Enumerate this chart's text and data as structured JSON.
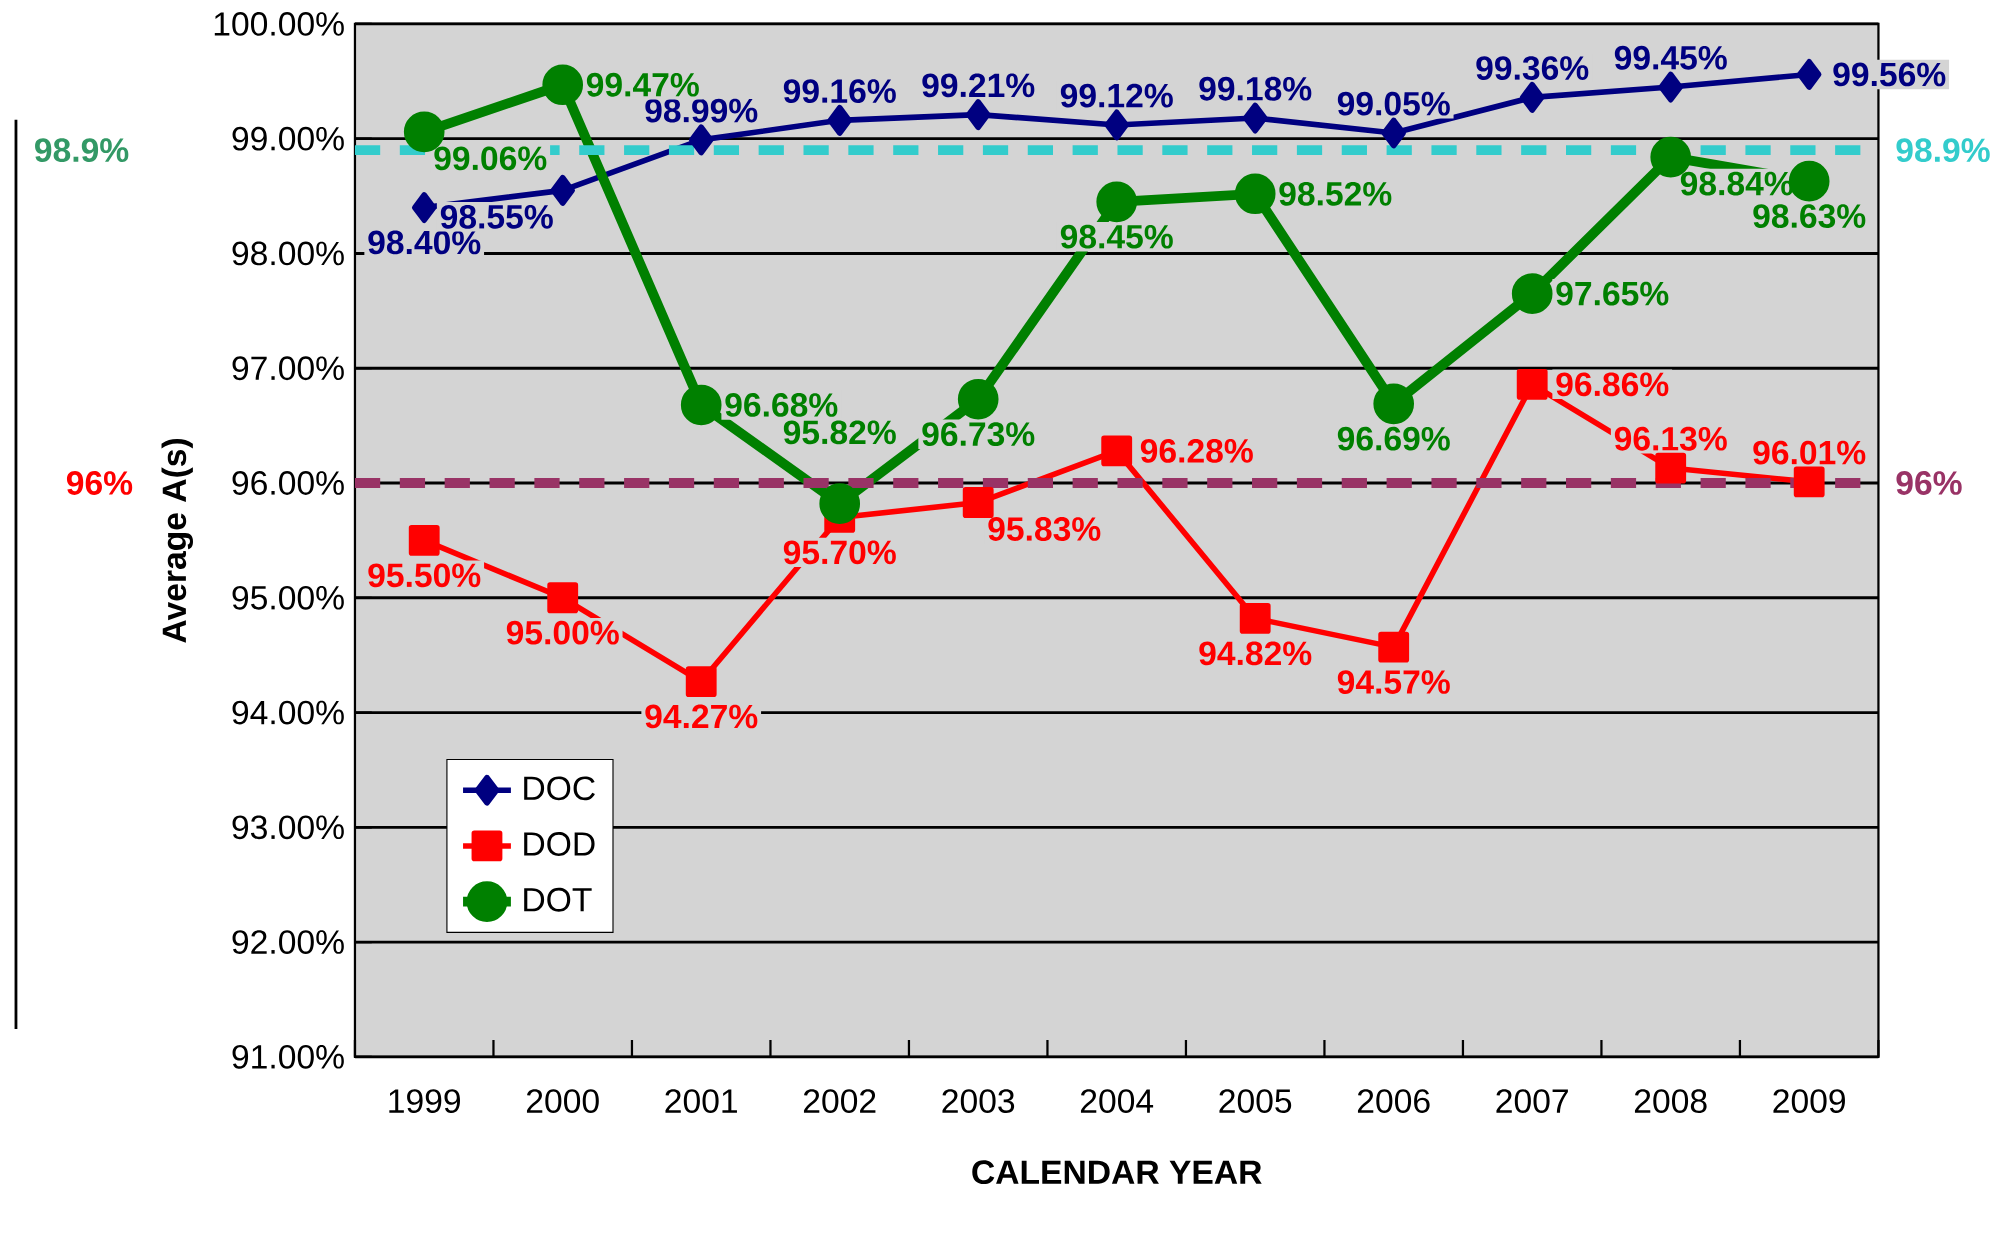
{
  "chart_data": {
    "type": "line",
    "xlabel": "CALENDAR YEAR",
    "ylabel": "Average A(s)",
    "categories": [
      "1999",
      "2000",
      "2001",
      "2002",
      "2003",
      "2004",
      "2005",
      "2006",
      "2007",
      "2008",
      "2009"
    ],
    "series": [
      {
        "name": "DOC",
        "color": "#000080",
        "marker": "diamond",
        "values": [
          98.4,
          98.55,
          98.99,
          99.16,
          99.21,
          99.12,
          99.18,
          99.05,
          99.36,
          99.45,
          99.56
        ],
        "value_labels": [
          "98.40%",
          "98.55%",
          "98.99%",
          "99.16%",
          "99.21%",
          "99.12%",
          "99.18%",
          "99.05%",
          "99.36%",
          "99.45%",
          "99.56%"
        ]
      },
      {
        "name": "DOD",
        "color": "#ff0000",
        "marker": "square",
        "values": [
          95.5,
          95.0,
          94.27,
          95.7,
          95.83,
          96.28,
          94.82,
          94.57,
          96.86,
          96.13,
          96.01
        ],
        "value_labels": [
          "95.50%",
          "95.00%",
          "94.27%",
          "95.70%",
          "95.83%",
          "96.28%",
          "94.82%",
          "94.57%",
          "96.86%",
          "96.13%",
          "96.01%"
        ]
      },
      {
        "name": "DOT",
        "color": "#008000",
        "marker": "circle",
        "values": [
          99.06,
          99.47,
          96.68,
          95.82,
          96.73,
          98.45,
          98.52,
          96.69,
          97.65,
          98.84,
          98.63
        ],
        "value_labels": [
          "99.06%",
          "99.47%",
          "96.68%",
          "95.82%",
          "96.73%",
          "98.45%",
          "98.52%",
          "96.69%",
          "97.65%",
          "98.84%",
          "98.63%"
        ]
      }
    ],
    "ylim": [
      91,
      100
    ],
    "yticks": [
      {
        "value": 91,
        "label": "91.00%"
      },
      {
        "value": 92,
        "label": "92.00%"
      },
      {
        "value": 93,
        "label": "93.00%"
      },
      {
        "value": 94,
        "label": "94.00%"
      },
      {
        "value": 95,
        "label": "95.00%"
      },
      {
        "value": 96,
        "label": "96.00%"
      },
      {
        "value": 97,
        "label": "97.00%"
      },
      {
        "value": 98,
        "label": "98.00%"
      },
      {
        "value": 99,
        "label": "99.00%"
      },
      {
        "value": 100,
        "label": "100.00%"
      }
    ],
    "ref_lines": [
      {
        "axis": "y",
        "value": 98.9,
        "label": "98.9%",
        "color": "#33cccc",
        "line_style": "dashed"
      },
      {
        "axis": "y",
        "value": 96,
        "label": "96%",
        "color": "#993366",
        "line_style": "dashed"
      }
    ],
    "annotations": [
      "98.9%",
      "96%"
    ],
    "grid": "y",
    "legend": "bottom left",
    "line_style": "solid"
  }
}
